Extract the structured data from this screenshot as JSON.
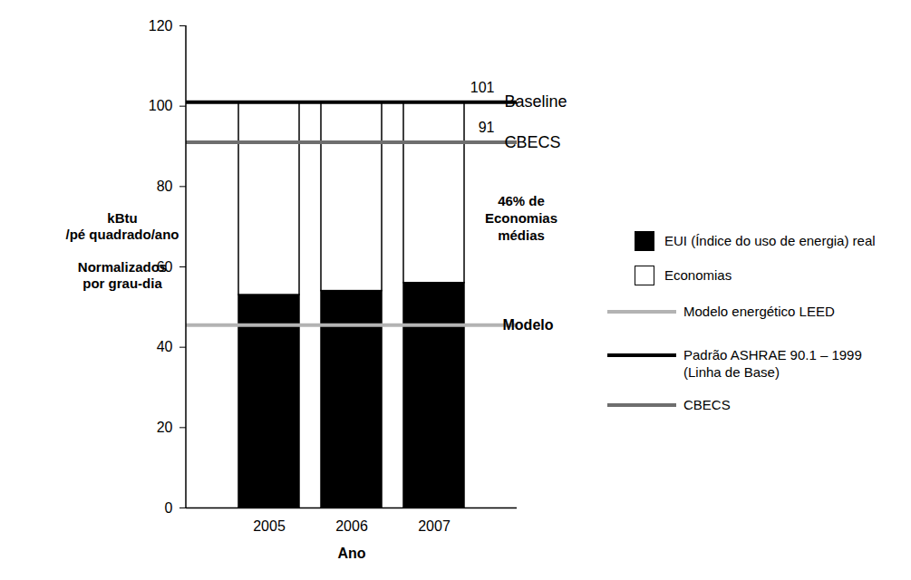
{
  "chart_data": {
    "type": "bar",
    "stacked": true,
    "categories": [
      "2005",
      "2006",
      "2007"
    ],
    "xlabel": "Ano",
    "ylabel": "kBtu\n/pé quadrado/ano\n\nNormalizados\npor grau-dia",
    "ylim": [
      0,
      120
    ],
    "yticks": [
      0,
      20,
      40,
      60,
      80,
      100,
      120
    ],
    "series": [
      {
        "name": "EUI (Índice do uso de energia) real",
        "color": "#000000",
        "values": [
          53,
          54,
          56
        ]
      },
      {
        "name": "Economias",
        "color": "#ffffff",
        "values": [
          48,
          47,
          45
        ]
      }
    ],
    "reference_lines": [
      {
        "name": "Modelo energético LEED",
        "label": "Modelo",
        "value": 45.5,
        "color": "#b3b3b3"
      },
      {
        "name": "Padrão ASHRAE 90.1 – 1999\n(Linha de Base)",
        "label": "Baseline",
        "value": 101,
        "value_label": "101",
        "color": "#000000"
      },
      {
        "name": "CBECS",
        "label": "CBECS",
        "value": 91,
        "value_label": "91",
        "color": "#6e6e6e"
      }
    ],
    "annotations": [
      {
        "text": "46% de\nEconomias\nmédias"
      }
    ]
  }
}
